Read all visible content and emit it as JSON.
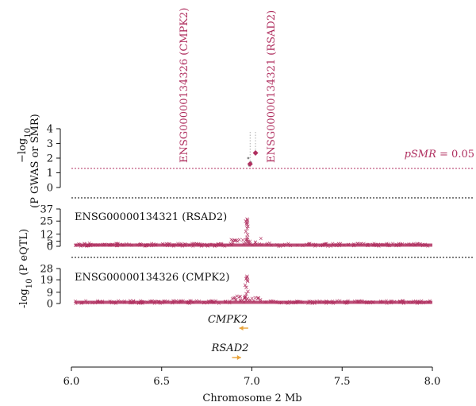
{
  "chart_data": {
    "type": "scatter",
    "xlabel": "Chromosome 2 Mb",
    "xticks": [
      "6.0",
      "6.5",
      "7.0",
      "7.5",
      "8.0"
    ],
    "xlim": [
      6.0,
      8.0
    ],
    "panels": [
      {
        "ylabel_main": "−log",
        "ylabel_sub": "10",
        "ylabel_rest": "(P GWAS or SMR)",
        "yticks": [
          "0",
          "1",
          "2",
          "3",
          "4"
        ],
        "ylim": [
          0,
          4
        ],
        "threshold_label_prefix": "pSMR",
        "threshold_label_suffix": " = 0.05",
        "threshold_value": 1.3,
        "smr_points": [
          {
            "x": 6.99,
            "y": 1.6,
            "probe": "ENSG00000134326 (CMPK2)"
          },
          {
            "x": 7.02,
            "y": 2.35,
            "probe": "ENSG00000134321 (RSAD2)"
          }
        ],
        "gwas_points": [
          {
            "x": 6.98,
            "y": 2.0
          },
          {
            "x": 6.985,
            "y": 1.5
          },
          {
            "x": 6.99,
            "y": 1.55
          },
          {
            "x": 6.995,
            "y": 1.7
          }
        ]
      },
      {
        "title": "ENSG00000134321 (RSAD2)",
        "yticks": [
          "0",
          "5",
          "12",
          "25",
          "37"
        ],
        "ylim": [
          0,
          37
        ]
      },
      {
        "title": "ENSG00000134326 (CMPK2)",
        "yticks": [
          "0",
          "9",
          "19",
          "28"
        ],
        "ylim": [
          0,
          28
        ]
      }
    ],
    "eqtl_ylabel_main": "-log",
    "eqtl_ylabel_sub": "10",
    "eqtl_ylabel_rest": "(P eQTL)",
    "genes": [
      {
        "name": "CMPK2",
        "start": 6.93,
        "end": 6.98,
        "strand": "-"
      },
      {
        "name": "RSAD2",
        "start": 6.89,
        "end": 6.94,
        "strand": "+"
      }
    ],
    "colors": {
      "points": "#b03060",
      "threshold": "#b03060",
      "divider": "#000000",
      "gene_arrow": "#e8a33a"
    }
  }
}
